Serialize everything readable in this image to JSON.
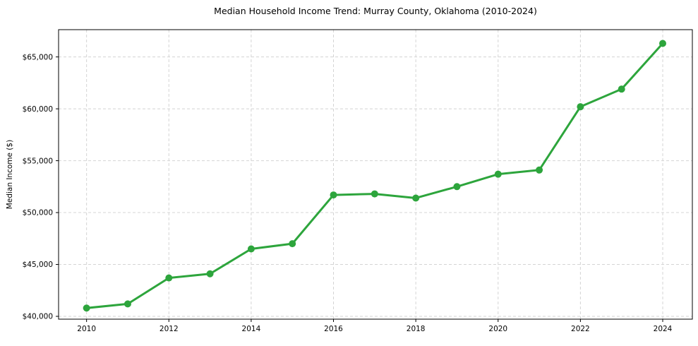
{
  "figure": {
    "background": "#ffffff"
  },
  "chart_data": {
    "type": "line",
    "title": "Median Household Income Trend: Murray County, Oklahoma (2010-2024)",
    "xlabel": "",
    "ylabel": "Median Income ($)",
    "x": [
      2010,
      2011,
      2012,
      2013,
      2014,
      2015,
      2016,
      2017,
      2018,
      2019,
      2020,
      2021,
      2022,
      2023,
      2024
    ],
    "series": [
      {
        "name": "Median household income",
        "color": "#2da53c",
        "marker": "circle",
        "values": [
          40800,
          41200,
          43700,
          44100,
          46500,
          47000,
          51700,
          51800,
          51400,
          52500,
          53700,
          54100,
          60200,
          61900,
          66300
        ]
      }
    ],
    "xticks": {
      "values": [
        2010,
        2012,
        2014,
        2016,
        2018,
        2020,
        2022,
        2024
      ],
      "labels": [
        "2010",
        "2012",
        "2014",
        "2016",
        "2018",
        "2020",
        "2022",
        "2024"
      ]
    },
    "yticks": {
      "values": [
        40000,
        45000,
        50000,
        55000,
        60000,
        65000
      ],
      "labels": [
        "$40,000",
        "$45,000",
        "$50,000",
        "$55,000",
        "$60,000",
        "$65,000"
      ]
    },
    "xlim": [
      2009.32,
      2024.72
    ],
    "ylim": [
      39728,
      67628
    ],
    "grid": {
      "visible": true,
      "line_style": "dashed",
      "color": "#d4d4d4"
    },
    "legend_position": "none",
    "axis_color": "#000000",
    "text_color": "#000000",
    "line_width": 3,
    "marker_radius": 5
  }
}
